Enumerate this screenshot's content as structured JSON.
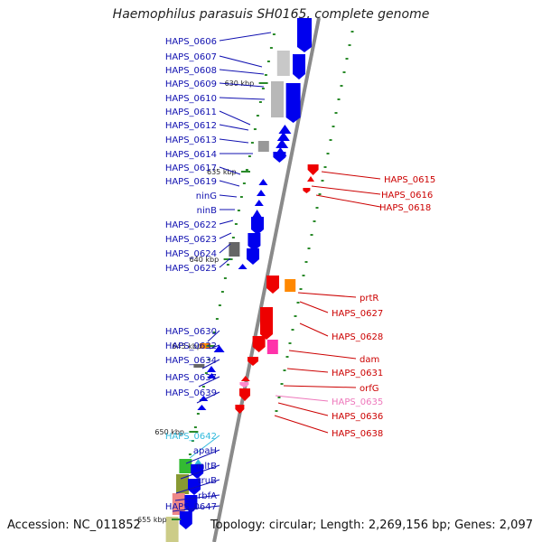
{
  "title": "Haemophilus parasuis SH0165, complete genome",
  "accession": "Accession: NC_011852",
  "summary": "Topology: circular; Length: 2,269,156 bp; Genes: 2,097",
  "colors": {
    "backbone": "#8a8a8a",
    "forward_gene": "#0000ee",
    "reverse_gene": "#ee0000",
    "forward_label": "#1010b0",
    "reverse_label": "#cc0000",
    "tick_mark": "#2a8a2a"
  },
  "scale_labels": [
    "630 kbp",
    "635 kbp",
    "640 kbp",
    "645 kbp",
    "650 kbp",
    "655 kbp"
  ],
  "left_labels": [
    {
      "text": "HAPS_0606",
      "color": "#1010b0"
    },
    {
      "text": "HAPS_0607",
      "color": "#1010b0"
    },
    {
      "text": "HAPS_0608",
      "color": "#1010b0"
    },
    {
      "text": "HAPS_0609",
      "color": "#1010b0"
    },
    {
      "text": "HAPS_0610",
      "color": "#1010b0"
    },
    {
      "text": "HAPS_0611",
      "color": "#1010b0"
    },
    {
      "text": "HAPS_0612",
      "color": "#1010b0"
    },
    {
      "text": "HAPS_0613",
      "color": "#1010b0"
    },
    {
      "text": "HAPS_0614",
      "color": "#1010b0"
    },
    {
      "text": "HAPS_0617",
      "color": "#1010b0"
    },
    {
      "text": "HAPS_0619",
      "color": "#1010b0"
    },
    {
      "text": "ninG",
      "color": "#1010b0"
    },
    {
      "text": "ninB",
      "color": "#1010b0"
    },
    {
      "text": "HAPS_0622",
      "color": "#1010b0"
    },
    {
      "text": "HAPS_0623",
      "color": "#1010b0"
    },
    {
      "text": "HAPS_0624",
      "color": "#1010b0"
    },
    {
      "text": "HAPS_0625",
      "color": "#1010b0"
    },
    {
      "text": "HAPS_0630",
      "color": "#1010b0"
    },
    {
      "text": "HAPS_0632",
      "color": "#1010b0"
    },
    {
      "text": "HAPS_0634",
      "color": "#1010b0"
    },
    {
      "text": "HAPS_0637",
      "color": "#1010b0"
    },
    {
      "text": "HAPS_0639",
      "color": "#1010b0"
    },
    {
      "text": "HAPS_0642",
      "color": "#33bbdd"
    },
    {
      "text": "apaH",
      "color": "#1010b0"
    },
    {
      "text": "mltB",
      "color": "#1010b0"
    },
    {
      "text": "truB",
      "color": "#1010b0"
    },
    {
      "text": "rbfA",
      "color": "#1010b0"
    },
    {
      "text": "HAPS_0647",
      "color": "#1010b0"
    }
  ],
  "right_labels": [
    {
      "text": "HAPS_0615",
      "color": "#cc0000"
    },
    {
      "text": "HAPS_0616",
      "color": "#cc0000"
    },
    {
      "text": "HAPS_0618",
      "color": "#cc0000"
    },
    {
      "text": "prtR",
      "color": "#cc0000"
    },
    {
      "text": "HAPS_0627",
      "color": "#cc0000"
    },
    {
      "text": "HAPS_0628",
      "color": "#cc0000"
    },
    {
      "text": "dam",
      "color": "#cc0000"
    },
    {
      "text": "HAPS_0631",
      "color": "#cc0000"
    },
    {
      "text": "orfG",
      "color": "#cc0000"
    },
    {
      "text": "HAPS_0635",
      "color": "#ee77bb"
    },
    {
      "text": "HAPS_0636",
      "color": "#cc0000"
    },
    {
      "text": "HAPS_0638",
      "color": "#cc0000"
    }
  ]
}
